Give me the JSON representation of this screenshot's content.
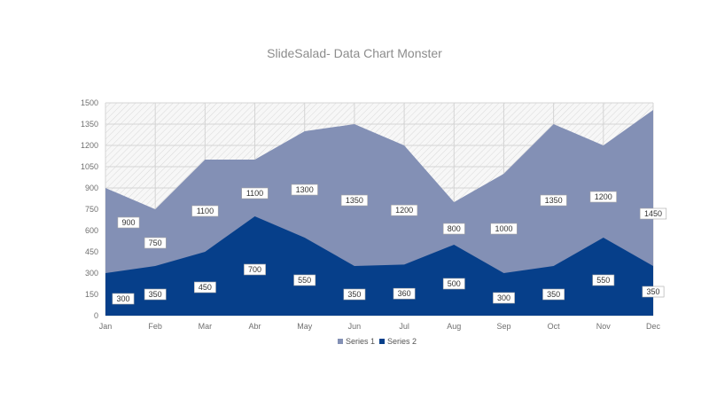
{
  "chart_data": {
    "type": "area",
    "title": "SlideSalad- Data Chart Monster",
    "categories": [
      "Jan",
      "Feb",
      "Mar",
      "Abr",
      "May",
      "Jun",
      "Jul",
      "Aug",
      "Sep",
      "Oct",
      "Nov",
      "Dec"
    ],
    "series": [
      {
        "name": "Series 1",
        "values": [
          900,
          750,
          1100,
          1100,
          1300,
          1350,
          1200,
          800,
          1000,
          1350,
          1200,
          1450
        ],
        "color": "#8390b5"
      },
      {
        "name": "Series 2",
        "values": [
          300,
          350,
          450,
          700,
          550,
          350,
          360,
          500,
          300,
          350,
          550,
          350
        ],
        "color": "#063f8a"
      }
    ],
    "yticks": [
      0,
      150,
      300,
      450,
      600,
      750,
      900,
      1050,
      1200,
      1350,
      1500
    ],
    "ylim": [
      0,
      1500
    ],
    "grid": true,
    "legend": "bottom",
    "xlabel": "",
    "ylabel": ""
  }
}
